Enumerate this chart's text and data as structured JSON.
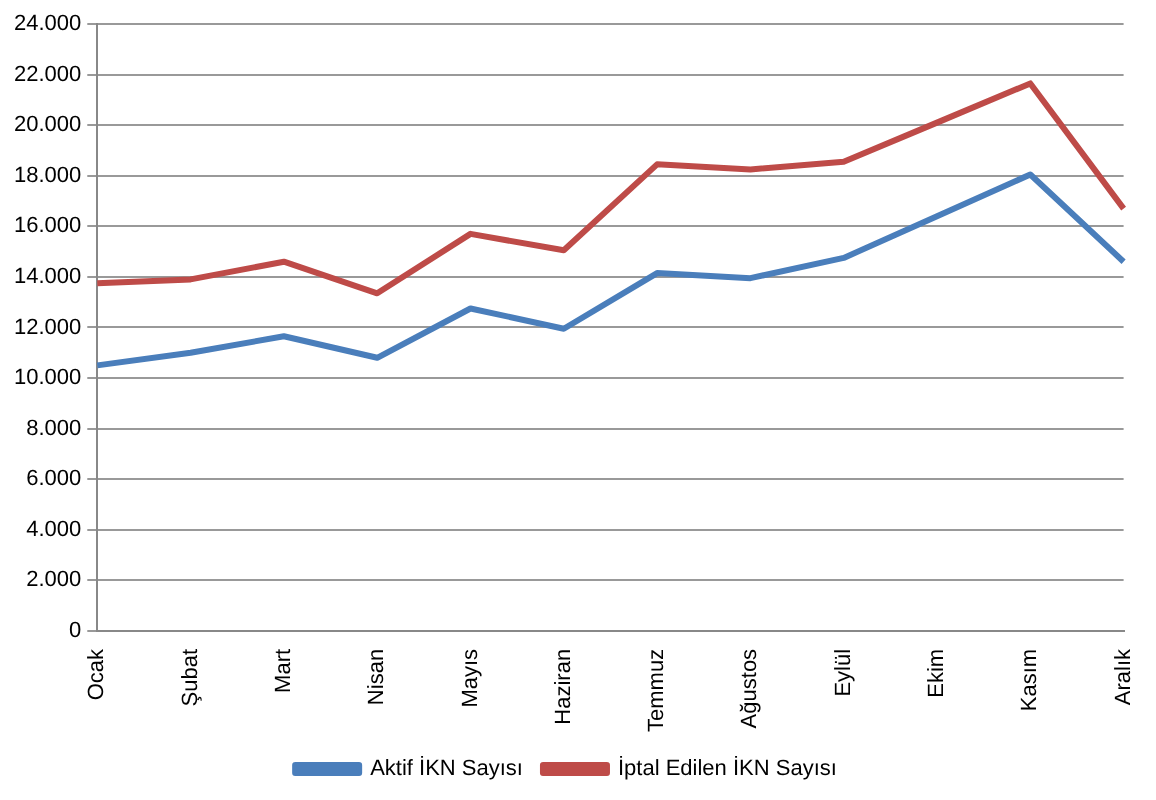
{
  "chart_data": {
    "type": "line",
    "categories": [
      "Ocak",
      "Şubat",
      "Mart",
      "Nisan",
      "Mayıs",
      "Haziran",
      "Temmuz",
      "Ağustos",
      "Eylül",
      "Ekim",
      "Kasım",
      "Aralık"
    ],
    "series": [
      {
        "name": "Aktif İKN Sayısı",
        "color": "#4a7ebb",
        "values": [
          10500,
          11000,
          11650,
          10800,
          12750,
          11950,
          14150,
          13950,
          14750,
          16400,
          18050,
          14600
        ]
      },
      {
        "name": "İptal Edilen İKN Sayısı",
        "color": "#be4b48",
        "values": [
          13750,
          13900,
          14600,
          13350,
          15700,
          15050,
          18450,
          18250,
          18550,
          20100,
          21650,
          16700
        ]
      }
    ],
    "ylim": [
      0,
      24000
    ],
    "yticks": [
      {
        "value": 0,
        "label": "0"
      },
      {
        "value": 2000,
        "label": "2.000"
      },
      {
        "value": 4000,
        "label": "4.000"
      },
      {
        "value": 6000,
        "label": "6.000"
      },
      {
        "value": 8000,
        "label": "8.000"
      },
      {
        "value": 10000,
        "label": "10.000"
      },
      {
        "value": 12000,
        "label": "12.000"
      },
      {
        "value": 14000,
        "label": "14.000"
      },
      {
        "value": 16000,
        "label": "16.000"
      },
      {
        "value": 18000,
        "label": "18.000"
      },
      {
        "value": 20000,
        "label": "20.000"
      },
      {
        "value": 22000,
        "label": "22.000"
      },
      {
        "value": 24000,
        "label": "24.000"
      }
    ],
    "grid": "y",
    "legend": "bottom",
    "marker": "none",
    "line_style": "solid"
  }
}
